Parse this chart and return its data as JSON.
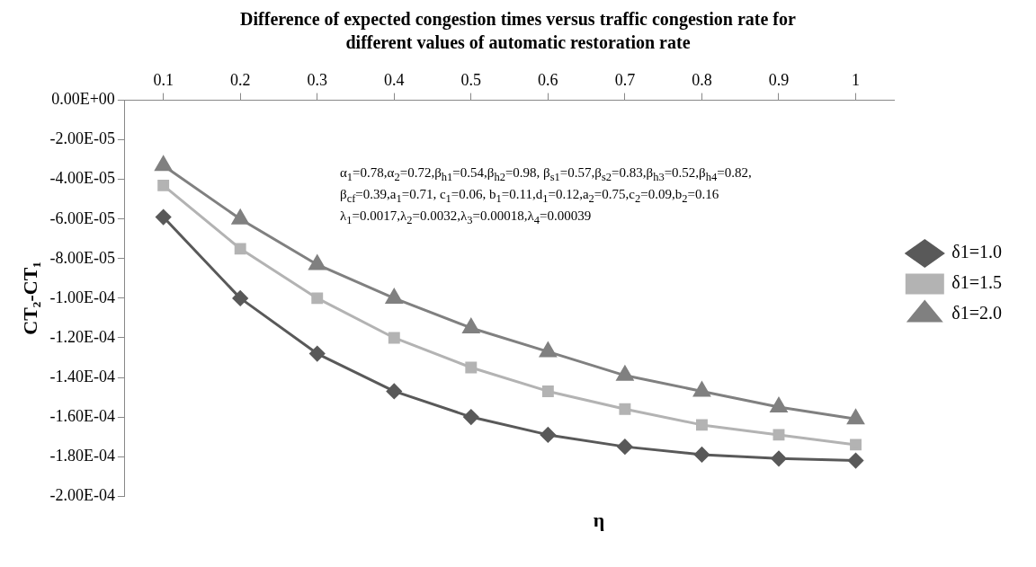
{
  "chart_data": {
    "type": "line",
    "title": "Difference of expected congestion times versus traffic congestion rate for different values of automatic restoration rate",
    "xlabel": "η",
    "ylabel": "CT₂-CT₁",
    "categories": [
      "0.1",
      "0.2",
      "0.3",
      "0.4",
      "0.5",
      "0.6",
      "0.7",
      "0.8",
      "0.9",
      "1"
    ],
    "series": [
      {
        "name": "δ1=1.0",
        "color": "#595959",
        "marker": "diamond",
        "values": [
          -5.9e-05,
          -0.0001,
          -0.000128,
          -0.000147,
          -0.00016,
          -0.000169,
          -0.000175,
          -0.000179,
          -0.000181,
          -0.000182
        ]
      },
      {
        "name": "δ1=1.5",
        "color": "#b3b3b3",
        "marker": "square",
        "values": [
          -4.3e-05,
          -7.5e-05,
          -0.0001,
          -0.00012,
          -0.000135,
          -0.000147,
          -0.000156,
          -0.000164,
          -0.000169,
          -0.000174
        ]
      },
      {
        "name": "δ1=2.0",
        "color": "#808080",
        "marker": "triangle",
        "values": [
          -3.3e-05,
          -6e-05,
          -8.3e-05,
          -0.0001,
          -0.000115,
          -0.000127,
          -0.000139,
          -0.000147,
          -0.000155,
          -0.000161
        ]
      }
    ],
    "ylim": [
      -0.0002,
      0
    ],
    "yticks": [
      {
        "value": 0,
        "label": "0.00E+00"
      },
      {
        "value": -2e-05,
        "label": "-2.00E-05"
      },
      {
        "value": -4e-05,
        "label": "-4.00E-05"
      },
      {
        "value": -6e-05,
        "label": "-6.00E-05"
      },
      {
        "value": -8e-05,
        "label": "-8.00E-05"
      },
      {
        "value": -0.0001,
        "label": "-1.00E-04"
      },
      {
        "value": -0.00012,
        "label": "-1.20E-04"
      },
      {
        "value": -0.00014,
        "label": "-1.40E-04"
      },
      {
        "value": -0.00016,
        "label": "-1.60E-04"
      },
      {
        "value": -0.00018,
        "label": "-1.80E-04"
      },
      {
        "value": -0.0002,
        "label": "-2.00E-04"
      }
    ],
    "annotations": [
      "α$_{1}$=0.78,α$_{2}$=0.72,β$_{h1}$=0.54,β$_{h2}$=0.98, β$_{s1}$=0.57,β$_{s2}$=0.83,β$_{h3}$=0.52,β$_{h4}$=0.82,",
      "β$_{cf}$=0.39,a$_{1}$=0.71, c$_{1}$=0.06, b$_{1}$=0.11,d$_{1}$=0.12,a$_{2}$=0.75,c$_{2}$=0.09,b$_{2}$=0.16",
      "λ$_{1}$=0.0017,λ$_{2}$=0.0032,λ$_{3}$=0.00018,λ$_{4}$=0.00039"
    ],
    "grid": false,
    "legend": "right"
  }
}
